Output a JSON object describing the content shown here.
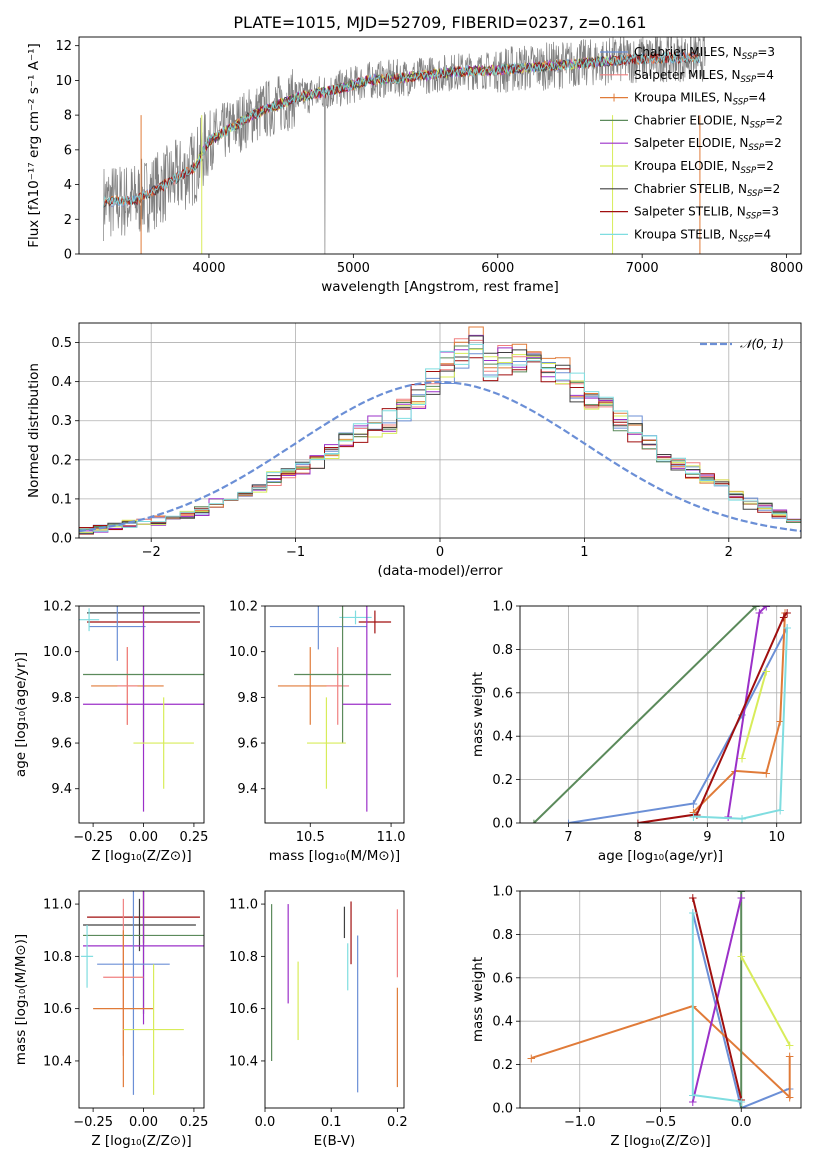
{
  "colors": {
    "chabrier_miles": "#6b8fd6",
    "salpeter_miles": "#f08080",
    "kroupa_miles": "#e07b39",
    "chabrier_elodie": "#5b8a5b",
    "salpeter_elodie": "#9b30c8",
    "kroupa_elodie": "#d8ec5a",
    "chabrier_stelib": "#404040",
    "salpeter_stelib": "#a00f0f",
    "kroupa_stelib": "#7fdde0",
    "data": "#808080",
    "gauss": "#6b8fd6"
  },
  "chart_data": [
    {
      "type": "line",
      "title": "PLATE=1015, MJD=52709, FIBERID=0237, z=0.161",
      "xlabel": "wavelength [Angstrom, rest frame]",
      "ylabel": "Flux [fλ10⁻¹⁷ erg cm⁻² s⁻¹ A⁻¹]",
      "xlim": [
        3100,
        8100
      ],
      "ylim": [
        0,
        12.5
      ],
      "xticks": [
        "4000",
        "5000",
        "6000",
        "7000",
        "8000"
      ],
      "yticks": [
        "0",
        "2",
        "4",
        "6",
        "8",
        "10",
        "12"
      ],
      "grid": false,
      "legend": "top-right",
      "legend_entries": [
        {
          "label": "Chabrier MILES, N",
          "sub": "SSP",
          "tail": "=3"
        },
        {
          "label": "Salpeter MILES, N",
          "sub": "SSP",
          "tail": "=4"
        },
        {
          "label": "Kroupa MILES, N",
          "sub": "SSP",
          "tail": "=4"
        },
        {
          "label": "Chabrier ELODIE, N",
          "sub": "SSP",
          "tail": "=2"
        },
        {
          "label": "Salpeter ELODIE, N",
          "sub": "SSP",
          "tail": "=2"
        },
        {
          "label": "Kroupa ELODIE, N",
          "sub": "SSP",
          "tail": "=2"
        },
        {
          "label": "Chabrier STELIB, N",
          "sub": "SSP",
          "tail": "=2"
        },
        {
          "label": "Salpeter STELIB, N",
          "sub": "SSP",
          "tail": "=3"
        },
        {
          "label": "Kroupa STELIB, N",
          "sub": "SSP",
          "tail": "=4"
        }
      ],
      "model_continuum": {
        "x": [
          3270,
          3500,
          3700,
          3900,
          4000,
          4300,
          4600,
          4900,
          5100,
          5400,
          5700,
          6000,
          6300,
          6600,
          6900,
          7200,
          7450
        ],
        "y": [
          3.0,
          3.1,
          4.0,
          5.0,
          6.5,
          8.0,
          9.0,
          9.5,
          10.0,
          10.2,
          10.5,
          10.6,
          10.8,
          11.0,
          11.2,
          11.3,
          11.3
        ]
      }
    },
    {
      "type": "histogram",
      "xlabel": "(data-model)/error",
      "ylabel": "Normed distribution",
      "xlim": [
        -2.5,
        2.5
      ],
      "ylim": [
        0,
        0.55
      ],
      "xticks": [
        "−2",
        "−1",
        "0",
        "1",
        "2"
      ],
      "yticks": [
        "0.0",
        "0.1",
        "0.2",
        "0.3",
        "0.4",
        "0.5"
      ],
      "grid": true,
      "legend": "top-right",
      "legend_label": "𝒩(0, 1)",
      "bin_width": 0.1,
      "series": [
        {
          "name": "chabrier_miles",
          "heights": [
            0.02,
            0.025,
            0.03,
            0.035,
            0.04,
            0.045,
            0.05,
            0.06,
            0.07,
            0.085,
            0.1,
            0.11,
            0.13,
            0.15,
            0.17,
            0.18,
            0.2,
            0.22,
            0.25,
            0.27,
            0.29,
            0.3,
            0.33,
            0.36,
            0.4,
            0.44,
            0.47,
            0.5,
            0.44,
            0.46,
            0.46,
            0.45,
            0.43,
            0.42,
            0.39,
            0.36,
            0.33,
            0.3,
            0.28,
            0.25,
            0.22,
            0.19,
            0.17,
            0.15,
            0.13,
            0.11,
            0.09,
            0.08,
            0.06,
            0.05
          ]
        },
        {
          "name": "salpeter_stelib",
          "heights": [
            0.015,
            0.02,
            0.025,
            0.03,
            0.04,
            0.05,
            0.055,
            0.065,
            0.075,
            0.085,
            0.1,
            0.12,
            0.14,
            0.16,
            0.18,
            0.2,
            0.23,
            0.25,
            0.27,
            0.29,
            0.31,
            0.33,
            0.35,
            0.4,
            0.45,
            0.48,
            0.46,
            0.47,
            0.45,
            0.44,
            0.48,
            0.43,
            0.41,
            0.38,
            0.35,
            0.32,
            0.3,
            0.27,
            0.24,
            0.22,
            0.19,
            0.16,
            0.14,
            0.12,
            0.1,
            0.085,
            0.07,
            0.055,
            0.045,
            0.035
          ]
        }
      ],
      "gaussian": {
        "mean": 0,
        "sigma": 1
      }
    },
    {
      "type": "scatter",
      "xlabel": "Z [log₁₀(Z/Z⊙)]",
      "ylabel": "age [log₁₀(age/yr)]",
      "xlim": [
        -0.32,
        0.3
      ],
      "ylim": [
        9.25,
        10.2
      ],
      "xticks": [
        "−0.25",
        "0.00",
        "0.25"
      ],
      "yticks": [
        "9.4",
        "9.6",
        "9.8",
        "10.0",
        "10.2"
      ]
    },
    {
      "type": "scatter",
      "xlabel": "mass [log₁₀(M/M⊙)]",
      "ylabel": "",
      "xlim": [
        10.22,
        11.08
      ],
      "ylim": [
        9.25,
        10.2
      ],
      "xticks": [
        "10.5",
        "11.0"
      ],
      "yticks": [
        "9.4",
        "9.6",
        "9.8",
        "10.0",
        "10.2"
      ]
    },
    {
      "type": "line",
      "xlabel": "age  [log₁₀(age/yr)]",
      "ylabel": "mass weight",
      "xlim": [
        6.3,
        10.35
      ],
      "ylim": [
        0,
        1
      ],
      "xticks": [
        "7",
        "8",
        "9",
        "10"
      ],
      "yticks": [
        "0.0",
        "0.2",
        "0.4",
        "0.6",
        "0.8",
        "1.0"
      ],
      "grid": true,
      "series": [
        {
          "name": "chabrier_miles",
          "x": [
            7.0,
            8.8,
            9.5,
            10.15
          ],
          "y": [
            0.0,
            0.09,
            0.5,
            0.9
          ]
        },
        {
          "name": "kroupa_miles",
          "x": [
            8.8,
            9.4,
            9.85,
            10.05,
            10.12
          ],
          "y": [
            0.05,
            0.24,
            0.23,
            0.47,
            0.97
          ]
        },
        {
          "name": "chabrier_elodie",
          "x": [
            6.5,
            9.7
          ],
          "y": [
            0.0,
            1.0
          ]
        },
        {
          "name": "salpeter_elodie",
          "x": [
            9.3,
            9.75,
            9.85
          ],
          "y": [
            0.03,
            0.97,
            1.0
          ]
        },
        {
          "name": "kroupa_elodie",
          "x": [
            9.5,
            9.85
          ],
          "y": [
            0.3,
            0.7
          ]
        },
        {
          "name": "salpeter_stelib",
          "x": [
            8.0,
            8.85,
            10.1,
            10.15
          ],
          "y": [
            0.0,
            0.04,
            0.95,
            0.97
          ]
        },
        {
          "name": "kroupa_stelib",
          "x": [
            8.8,
            9.5,
            10.05,
            10.15
          ],
          "y": [
            0.03,
            0.02,
            0.06,
            0.9
          ]
        }
      ]
    },
    {
      "type": "scatter",
      "xlabel": "Z [log₁₀(Z/Z⊙)]",
      "ylabel": "mass [log₁₀(M/M⊙)]",
      "xlim": [
        -0.32,
        0.3
      ],
      "ylim": [
        10.22,
        11.05
      ],
      "xticks": [
        "−0.25",
        "0.00",
        "0.25"
      ],
      "yticks": [
        "10.4",
        "10.6",
        "10.8",
        "11.0"
      ]
    },
    {
      "type": "scatter",
      "xlabel": "E(B-V)",
      "ylabel": "",
      "xlim": [
        0.0,
        0.21
      ],
      "ylim": [
        10.22,
        11.05
      ],
      "xticks": [
        "0.0",
        "0.1",
        "0.2"
      ],
      "yticks": [
        "10.4",
        "10.6",
        "10.8",
        "11.0"
      ]
    },
    {
      "type": "line",
      "xlabel": "Z [log₁₀(Z/Z⊙)]",
      "ylabel": "mass weight",
      "xlim": [
        -1.37,
        0.37
      ],
      "ylim": [
        0,
        1
      ],
      "xticks": [
        "−1.0",
        "−0.5",
        "0.0"
      ],
      "yticks": [
        "0.0",
        "0.2",
        "0.4",
        "0.6",
        "0.8",
        "1.0"
      ],
      "grid": true,
      "series": [
        {
          "name": "chabrier_miles",
          "x": [
            -0.3,
            0.0,
            0.3
          ],
          "y": [
            0.9,
            0.0,
            0.09
          ]
        },
        {
          "name": "kroupa_miles",
          "x": [
            -1.3,
            -0.3,
            0.3,
            0.3
          ],
          "y": [
            0.23,
            0.47,
            0.05,
            0.24
          ]
        },
        {
          "name": "chabrier_elodie",
          "x": [
            0.0,
            0.0
          ],
          "y": [
            0.0,
            1.0
          ]
        },
        {
          "name": "salpeter_elodie",
          "x": [
            -0.3,
            0.0
          ],
          "y": [
            0.03,
            0.97
          ]
        },
        {
          "name": "kroupa_elodie",
          "x": [
            0.0,
            0.3
          ],
          "y": [
            0.7,
            0.29
          ]
        },
        {
          "name": "salpeter_stelib",
          "x": [
            -0.3,
            0.0
          ],
          "y": [
            0.97,
            0.04
          ]
        },
        {
          "name": "kroupa_stelib",
          "x": [
            -0.3,
            -0.3,
            0.0
          ],
          "y": [
            0.9,
            0.06,
            0.03
          ]
        }
      ]
    }
  ],
  "crosses_ageZ": [
    {
      "c": "chabrier_stelib",
      "x": 0.0,
      "y": 10.17,
      "ex": 0.28,
      "ey": 0.0
    },
    {
      "c": "salpeter_stelib",
      "x": 0.0,
      "y": 10.13,
      "ex": 0.28,
      "ey": 0.0
    },
    {
      "c": "chabrier_miles",
      "x": -0.13,
      "y": 10.11,
      "ex": 0.14,
      "ey": 0.15
    },
    {
      "c": "kroupa_miles",
      "x": -0.08,
      "y": 9.85,
      "ex": 0.18,
      "ey": 0.17
    },
    {
      "c": "salpeter_miles",
      "x": -0.08,
      "y": 9.85,
      "ex": 0.05,
      "ey": 0.17
    },
    {
      "c": "chabrier_elodie",
      "x": 0.0,
      "y": 9.9,
      "ex": 0.3,
      "ey": 0.3
    },
    {
      "c": "salpeter_elodie",
      "x": 0.0,
      "y": 9.77,
      "ex": 0.3,
      "ey": 0.47
    },
    {
      "c": "kroupa_elodie",
      "x": 0.1,
      "y": 9.6,
      "ex": 0.15,
      "ey": 0.2
    },
    {
      "c": "kroupa_stelib",
      "x": -0.27,
      "y": 10.14,
      "ex": 0.05,
      "ey": 0.05
    }
  ],
  "crosses_ageM": [
    {
      "c": "chabrier_miles",
      "x": 10.55,
      "y": 10.11,
      "ex": 0.3,
      "ey": 0.1
    },
    {
      "c": "salpeter_stelib",
      "x": 10.9,
      "y": 10.13,
      "ex": 0.1,
      "ey": 0.05
    },
    {
      "c": "kroupa_stelib",
      "x": 10.78,
      "y": 10.15,
      "ex": 0.1,
      "ey": 0.03
    },
    {
      "c": "kroupa_miles",
      "x": 10.5,
      "y": 9.85,
      "ex": 0.2,
      "ey": 0.17
    },
    {
      "c": "salpeter_miles",
      "x": 10.67,
      "y": 9.85,
      "ex": 0.07,
      "ey": 0.17
    },
    {
      "c": "chabrier_elodie",
      "x": 10.7,
      "y": 9.9,
      "ex": 0.3,
      "ey": 0.3
    },
    {
      "c": "salpeter_elodie",
      "x": 10.85,
      "y": 9.77,
      "ex": 0.15,
      "ey": 0.47
    },
    {
      "c": "kroupa_elodie",
      "x": 10.6,
      "y": 9.6,
      "ex": 0.12,
      "ey": 0.2
    }
  ],
  "crosses_MZ": [
    {
      "c": "salpeter_stelib",
      "x": 0.0,
      "y": 10.95,
      "ex": 0.28,
      "ey": 0.1
    },
    {
      "c": "chabrier_stelib",
      "x": -0.02,
      "y": 10.92,
      "ex": 0.28,
      "ey": 0.1
    },
    {
      "c": "chabrier_elodie",
      "x": 0.0,
      "y": 10.88,
      "ex": 0.3,
      "ey": 0.3
    },
    {
      "c": "salpeter_elodie",
      "x": 0.0,
      "y": 10.84,
      "ex": 0.3,
      "ey": 0.3
    },
    {
      "c": "chabrier_miles",
      "x": -0.05,
      "y": 10.77,
      "ex": 0.18,
      "ey": 0.5
    },
    {
      "c": "salpeter_miles",
      "x": -0.1,
      "y": 10.72,
      "ex": 0.1,
      "ey": 0.3
    },
    {
      "c": "kroupa_miles",
      "x": -0.1,
      "y": 10.6,
      "ex": 0.15,
      "ey": 0.3
    },
    {
      "c": "kroupa_elodie",
      "x": 0.05,
      "y": 10.52,
      "ex": 0.15,
      "ey": 0.25
    },
    {
      "c": "kroupa_stelib",
      "x": -0.28,
      "y": 10.8,
      "ex": 0.03,
      "ey": 0.12
    }
  ],
  "crosses_ME": [
    {
      "c": "chabrier_elodie",
      "x": 0.01,
      "y": 10.7,
      "ex": 0.0,
      "ey": 0.3
    },
    {
      "c": "salpeter_elodie",
      "x": 0.035,
      "y": 10.81,
      "ex": 0.0,
      "ey": 0.19
    },
    {
      "c": "kroupa_elodie",
      "x": 0.05,
      "y": 10.63,
      "ex": 0.0,
      "ey": 0.15
    },
    {
      "c": "chabrier_stelib",
      "x": 0.12,
      "y": 10.93,
      "ex": 0.0,
      "ey": 0.06
    },
    {
      "c": "salpeter_stelib",
      "x": 0.13,
      "y": 10.89,
      "ex": 0.0,
      "ey": 0.12
    },
    {
      "c": "kroupa_stelib",
      "x": 0.125,
      "y": 10.76,
      "ex": 0.0,
      "ey": 0.09
    },
    {
      "c": "chabrier_miles",
      "x": 0.14,
      "y": 10.58,
      "ex": 0.0,
      "ey": 0.3
    },
    {
      "c": "kroupa_miles",
      "x": 0.2,
      "y": 10.49,
      "ex": 0.0,
      "ey": 0.19
    },
    {
      "c": "salpeter_miles",
      "x": 0.2,
      "y": 10.85,
      "ex": 0.0,
      "ey": 0.13
    }
  ]
}
